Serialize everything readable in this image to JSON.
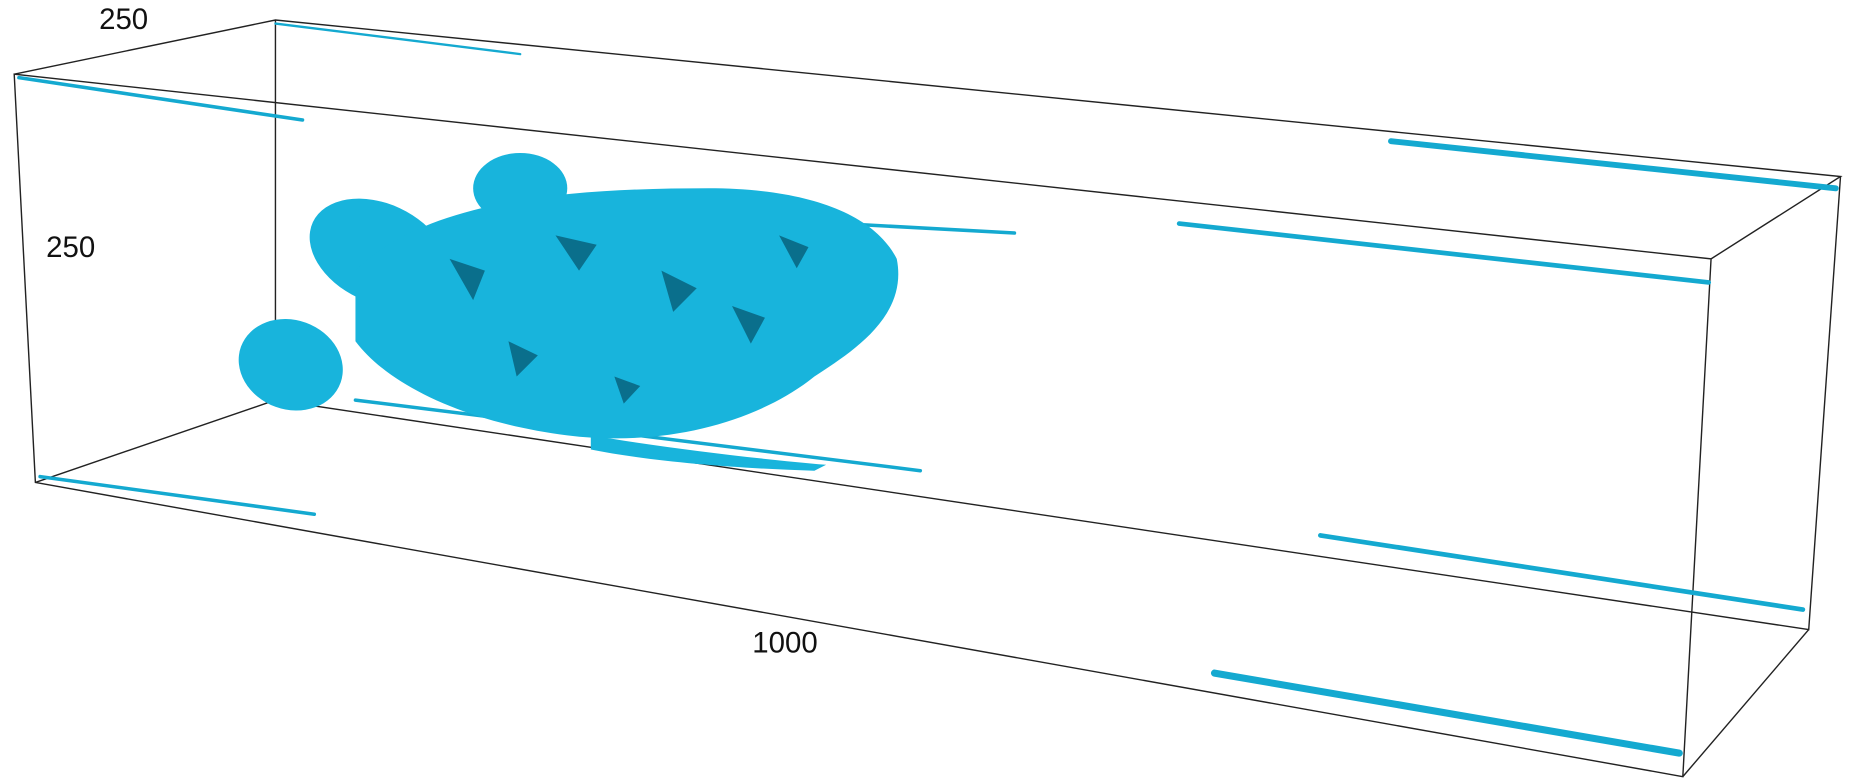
{
  "axis_labels": {
    "depth": "250",
    "height": "250",
    "length": "1000"
  }
}
